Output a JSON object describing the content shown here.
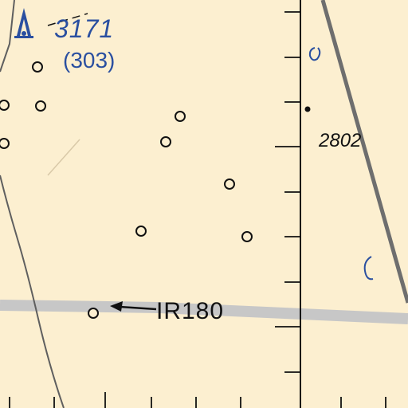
{
  "map": {
    "obstacle_label": "3171",
    "obstacle_agl": "(303)",
    "spot_elevation": "2802",
    "route_label": "IR180",
    "colors": {
      "background": "#fcefd0",
      "route": "#c7c7c7",
      "road": "#6e6e6e",
      "boundary": "#5f5f5f",
      "water": "#2a4fa0",
      "ink": "#111111"
    }
  }
}
